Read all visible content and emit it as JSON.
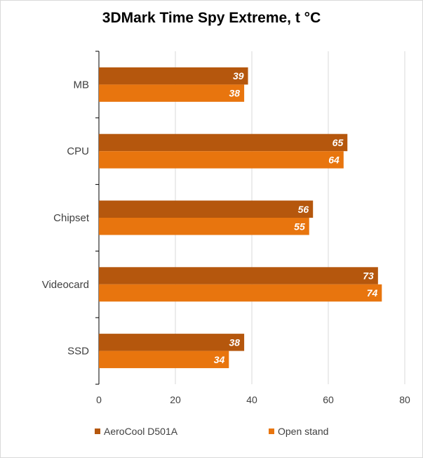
{
  "chart_data": {
    "type": "bar",
    "orientation": "horizontal",
    "title": "3DMark Time Spy Extreme, t °C",
    "categories": [
      "MB",
      "CPU",
      "Chipset",
      "Videocard",
      "SSD"
    ],
    "series": [
      {
        "name": "AeroCool D501A",
        "color": "#b5570d",
        "values": [
          39,
          65,
          56,
          73,
          38
        ]
      },
      {
        "name": "Open stand",
        "color": "#e8750e",
        "values": [
          38,
          64,
          55,
          74,
          34
        ]
      }
    ],
    "xlim": [
      0,
      80
    ],
    "xticks": [
      0,
      20,
      40,
      60,
      80
    ],
    "grid": true,
    "legend_position": "bottom"
  }
}
